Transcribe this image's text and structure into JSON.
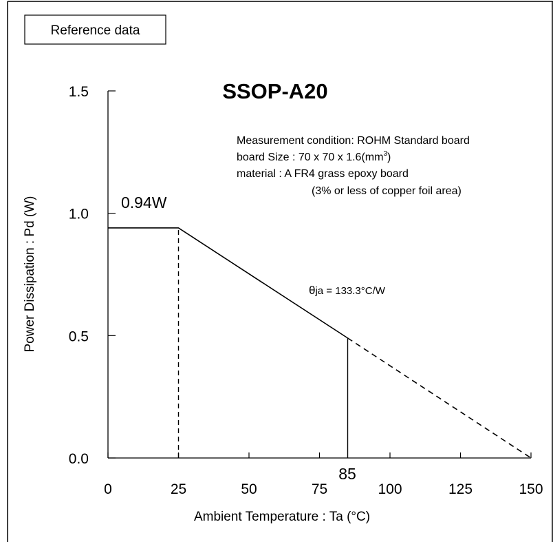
{
  "reference_label": "Reference data",
  "chart_data": {
    "type": "line",
    "title": "SSOP-A20",
    "xlabel": "Ambient Temperature : Ta (°C)",
    "ylabel": "Power Dissipation : Pd (W)",
    "xlim": [
      0,
      150
    ],
    "ylim": [
      0,
      1.5
    ],
    "xticks": [
      0,
      25,
      50,
      75,
      100,
      125,
      150
    ],
    "xtick_labels": [
      "0",
      "25",
      "50",
      "75",
      "100",
      "125",
      "150"
    ],
    "yticks": [
      0,
      0.5,
      1.0,
      1.5
    ],
    "ytick_labels": [
      "0.0",
      "0.5",
      "1.0",
      "1.5"
    ],
    "grid": false,
    "series": [
      {
        "style": "solid",
        "x": [
          0,
          25,
          85
        ],
        "y": [
          0.94,
          0.94,
          0.49
        ]
      },
      {
        "style": "dashed",
        "x": [
          85,
          150
        ],
        "y": [
          0.49,
          0
        ]
      }
    ],
    "guides": [
      {
        "style": "dashed",
        "x": 25,
        "from_y": 0,
        "to_y": 0.94
      },
      {
        "style": "solid",
        "x": 85,
        "from_y": 0,
        "to_y": 0.49
      }
    ],
    "annotations": {
      "peak_label": "0.94W",
      "theta_symbol": "θ",
      "theta_rest": "ja = 133.3°C/W",
      "x_marker_label": "85",
      "condition_lines": [
        "Measurement condition: ROHM Standard board",
        "board Size : 70 x 70 x 1.6(mm",
        "material : A FR4 grass epoxy board",
        "(3% or less of copper foil area)"
      ],
      "superscript": "3",
      "close_paren": ")"
    }
  }
}
